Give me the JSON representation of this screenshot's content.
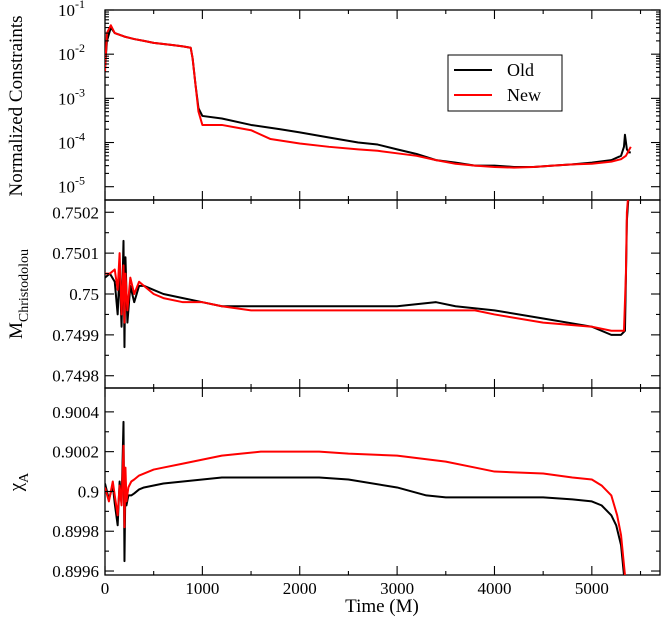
{
  "chart_data": [
    {
      "type": "line",
      "panel": "constraints",
      "ylabel": "Normalized Constraints",
      "yscale": "log",
      "xlim": [
        0,
        5700
      ],
      "ylim": [
        5e-06,
        0.1
      ],
      "ytick_values": [
        1e-05,
        0.0001,
        0.001,
        0.01,
        0.1
      ],
      "ytick_exponents": [
        "-5",
        "-4",
        "-3",
        "-2",
        "-1"
      ],
      "ytick_base": "10",
      "legend": {
        "position": "top-right",
        "entries": [
          "Old",
          "New"
        ]
      },
      "series": [
        {
          "name": "Old",
          "color": "#000000",
          "x": [
            0,
            20,
            60,
            100,
            200,
            300,
            400,
            500,
            600,
            700,
            800,
            880,
            900,
            930,
            960,
            1000,
            1200,
            1500,
            1800,
            2000,
            2300,
            2600,
            2800,
            3000,
            3200,
            3400,
            3600,
            3800,
            4000,
            4200,
            4400,
            4600,
            4800,
            5000,
            5200,
            5300,
            5330,
            5340,
            5360,
            5380,
            5400
          ],
          "y": [
            0.005,
            0.02,
            0.04,
            0.03,
            0.025,
            0.022,
            0.02,
            0.018,
            0.017,
            0.016,
            0.015,
            0.014,
            0.008,
            0.002,
            0.0006,
            0.0004,
            0.00035,
            0.00025,
            0.0002,
            0.00017,
            0.00013,
            0.0001,
            9e-05,
            7e-05,
            5.5e-05,
            4e-05,
            3.5e-05,
            3e-05,
            3e-05,
            2.8e-05,
            2.8e-05,
            3e-05,
            3.2e-05,
            3.5e-05,
            4e-05,
            5e-05,
            8e-05,
            0.00015,
            7e-05,
            6e-05,
            6e-05
          ]
        },
        {
          "name": "New",
          "color": "#ff0000",
          "x": [
            0,
            20,
            60,
            100,
            200,
            300,
            400,
            500,
            600,
            700,
            800,
            880,
            900,
            930,
            960,
            1000,
            1200,
            1500,
            1700,
            2000,
            2300,
            2600,
            2800,
            3000,
            3200,
            3400,
            3600,
            3800,
            4000,
            4200,
            4400,
            4600,
            4800,
            5000,
            5200,
            5300,
            5350,
            5400
          ],
          "y": [
            0.004,
            0.03,
            0.045,
            0.03,
            0.025,
            0.022,
            0.02,
            0.018,
            0.017,
            0.016,
            0.015,
            0.014,
            0.008,
            0.002,
            0.0005,
            0.00025,
            0.00025,
            0.00019,
            0.00012,
            9.5e-05,
            8e-05,
            7e-05,
            6.5e-05,
            5.7e-05,
            5e-05,
            4e-05,
            3.3e-05,
            3e-05,
            2.8e-05,
            2.7e-05,
            2.8e-05,
            3e-05,
            3.2e-05,
            3.3e-05,
            3.7e-05,
            4.2e-05,
            5e-05,
            8e-05
          ]
        }
      ]
    },
    {
      "type": "line",
      "panel": "mass",
      "ylabel_main": "M",
      "ylabel_sub": "Christodolou",
      "xlim": [
        0,
        5700
      ],
      "ylim": [
        0.74977,
        0.75023
      ],
      "yticks": [
        0.7498,
        0.7499,
        0.75,
        0.7501,
        0.7502
      ],
      "ytick_labels": [
        "0.7498",
        "0.7499",
        "0.75",
        "0.7501",
        "0.7502"
      ],
      "series": [
        {
          "name": "Old",
          "color": "#000000",
          "x": [
            0,
            50,
            100,
            130,
            150,
            170,
            190,
            200,
            210,
            230,
            260,
            300,
            350,
            400,
            500,
            600,
            800,
            1000,
            1200,
            1500,
            2000,
            2500,
            3000,
            3400,
            3600,
            4000,
            4500,
            5000,
            5200,
            5300,
            5340,
            5350,
            5360,
            5380
          ],
          "y": [
            0.75004,
            0.75005,
            0.75003,
            0.74995,
            0.75006,
            0.74992,
            0.75013,
            0.74987,
            0.75009,
            0.74993,
            0.75002,
            0.74998,
            0.75002,
            0.75002,
            0.75001,
            0.75,
            0.74999,
            0.74998,
            0.74997,
            0.74997,
            0.74997,
            0.74997,
            0.74997,
            0.74998,
            0.74997,
            0.74996,
            0.74994,
            0.74992,
            0.7499,
            0.7499,
            0.74991,
            0.75004,
            0.75018,
            0.75025
          ]
        },
        {
          "name": "New",
          "color": "#ff0000",
          "x": [
            0,
            50,
            100,
            130,
            150,
            170,
            190,
            200,
            210,
            230,
            260,
            300,
            350,
            400,
            500,
            600,
            800,
            1000,
            1200,
            1500,
            2000,
            2500,
            3000,
            3500,
            3800,
            4000,
            4500,
            5000,
            5200,
            5330,
            5350,
            5360,
            5380
          ],
          "y": [
            0.75005,
            0.75005,
            0.75006,
            0.75001,
            0.7501,
            0.74995,
            0.75007,
            0.74993,
            0.75005,
            0.74996,
            0.75004,
            0.75,
            0.75003,
            0.75002,
            0.75,
            0.74999,
            0.74998,
            0.74998,
            0.74997,
            0.74996,
            0.74996,
            0.74996,
            0.74996,
            0.74996,
            0.74996,
            0.74995,
            0.74993,
            0.74992,
            0.74991,
            0.74991,
            0.75005,
            0.7502,
            0.75026
          ]
        }
      ]
    },
    {
      "type": "line",
      "panel": "spin",
      "ylabel_main": "χ",
      "ylabel_sub": "A",
      "xlabel": "Time (M)",
      "xlim": [
        0,
        5700
      ],
      "ylim": [
        0.89958,
        0.90052
      ],
      "xticks": [
        0,
        1000,
        2000,
        3000,
        4000,
        5000
      ],
      "xtick_labels": [
        "0",
        "1000",
        "2000",
        "3000",
        "4000",
        "5000"
      ],
      "yticks": [
        0.8996,
        0.8998,
        0.9,
        0.9002,
        0.9004
      ],
      "ytick_labels": [
        "0.8996",
        "0.8998",
        "0.9",
        "0.9002",
        "0.9004"
      ],
      "series": [
        {
          "name": "Old",
          "color": "#000000",
          "x": [
            0,
            40,
            80,
            100,
            130,
            150,
            170,
            190,
            200,
            210,
            220,
            240,
            270,
            300,
            350,
            400,
            500,
            600,
            800,
            1000,
            1200,
            1400,
            1600,
            1800,
            2000,
            2200,
            2500,
            3000,
            3300,
            3500,
            4000,
            4500,
            4800,
            5000,
            5100,
            5200,
            5250,
            5300,
            5330
          ],
          "y": [
            0.90004,
            0.89996,
            0.90003,
            0.89994,
            0.89983,
            0.90005,
            0.89994,
            0.90035,
            0.89965,
            0.90006,
            0.89993,
            0.89998,
            0.89998,
            0.89999,
            0.90001,
            0.90002,
            0.90003,
            0.90004,
            0.90005,
            0.90006,
            0.90007,
            0.90007,
            0.90007,
            0.90007,
            0.90007,
            0.90007,
            0.90006,
            0.90002,
            0.89998,
            0.89997,
            0.89997,
            0.89997,
            0.89996,
            0.89995,
            0.89993,
            0.89988,
            0.89983,
            0.89973,
            0.89958
          ]
        },
        {
          "name": "New",
          "color": "#ff0000",
          "x": [
            0,
            40,
            80,
            100,
            130,
            150,
            170,
            190,
            200,
            210,
            220,
            240,
            270,
            300,
            350,
            400,
            500,
            600,
            800,
            1000,
            1200,
            1400,
            1600,
            1800,
            2000,
            2200,
            2500,
            3000,
            3500,
            3800,
            4000,
            4500,
            4800,
            5000,
            5100,
            5200,
            5260,
            5300,
            5340
          ],
          "y": [
            0.90002,
            0.89995,
            0.90005,
            0.89998,
            0.89988,
            0.90003,
            0.89993,
            0.90023,
            0.89982,
            0.90012,
            0.89995,
            0.90002,
            0.90005,
            0.90006,
            0.90008,
            0.90009,
            0.90011,
            0.90012,
            0.90014,
            0.90016,
            0.90018,
            0.90019,
            0.9002,
            0.9002,
            0.9002,
            0.9002,
            0.90019,
            0.90018,
            0.90015,
            0.90012,
            0.9001,
            0.90009,
            0.90007,
            0.90006,
            0.90003,
            0.89998,
            0.89988,
            0.89978,
            0.89958
          ]
        }
      ]
    }
  ]
}
